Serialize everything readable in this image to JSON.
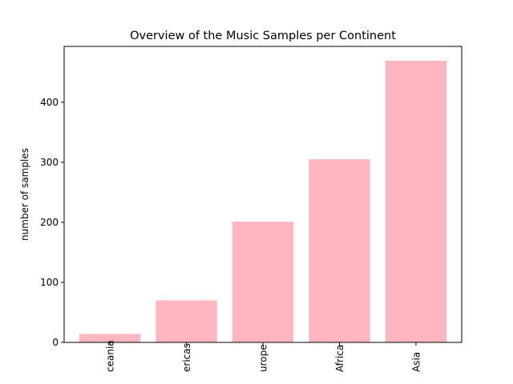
{
  "chart_data": {
    "type": "bar",
    "title": "Overview of the Music Samples per Continent",
    "xlabel": "",
    "ylabel": "number of samples",
    "categories": [
      "Oceania",
      "Americas",
      "Europe",
      "Africa",
      "Asia"
    ],
    "tick_labels_visible": [
      "ceania",
      "ericas",
      "urope",
      "Africa",
      "Asia"
    ],
    "values": [
      14,
      70,
      201,
      305,
      469
    ],
    "ylim": [
      0,
      493
    ],
    "yticks": [
      0,
      100,
      200,
      300,
      400
    ],
    "grid": false,
    "bar_color": "#ffb6c1"
  }
}
